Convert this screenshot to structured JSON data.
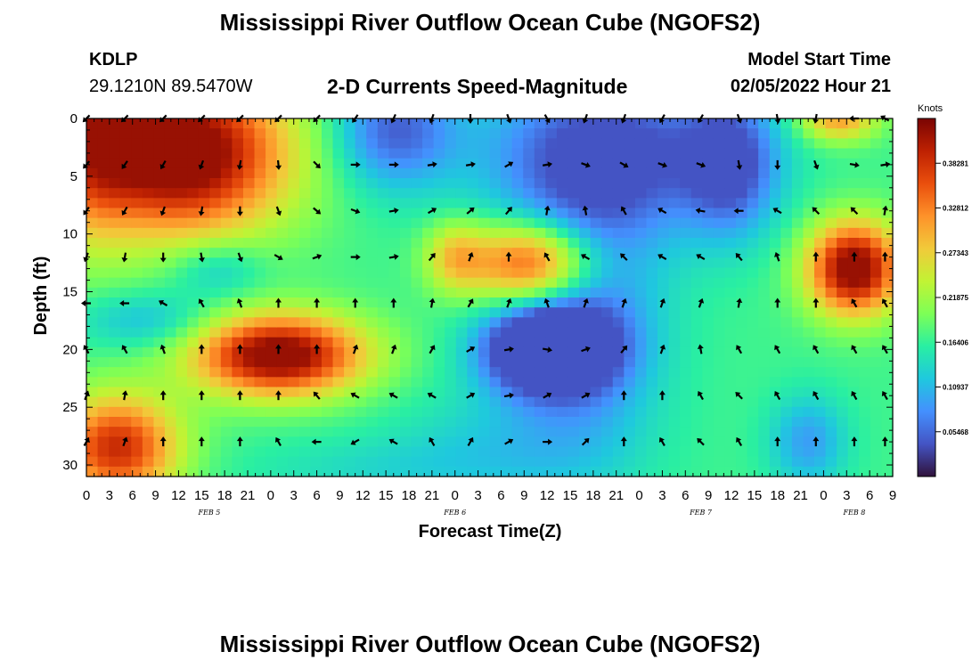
{
  "header": {
    "title": "Mississippi River Outflow Ocean Cube (NGOFS2)",
    "station": "KDLP",
    "coords": "29.1210N  89.5470W",
    "subtitle": "2-D Currents Speed-Magnitude",
    "model_start_label": "Model Start Time",
    "model_start_value": "02/05/2022 Hour 21"
  },
  "footer": {
    "title": "Mississippi River Outflow Ocean Cube (NGOFS2)"
  },
  "colors": {
    "colormap": [
      "#30123b",
      "#4454c4",
      "#4490fe",
      "#1fc8de",
      "#29efa2",
      "#7dff56",
      "#c1f334",
      "#f1ca3a",
      "#fe922a",
      "#ea4f0d",
      "#be2102",
      "#7a0403"
    ]
  },
  "chart_data": {
    "type": "heatmap",
    "xlabel": "Forecast Time(Z)",
    "ylabel": "Depth (ft)",
    "x_range": [
      0,
      105
    ],
    "y_range": [
      0,
      31
    ],
    "x_ticks": [
      {
        "hour": 0,
        "label": "0"
      },
      {
        "hour": 3,
        "label": "3"
      },
      {
        "hour": 6,
        "label": "6"
      },
      {
        "hour": 9,
        "label": "9"
      },
      {
        "hour": 12,
        "label": "12"
      },
      {
        "hour": 15,
        "label": "15"
      },
      {
        "hour": 18,
        "label": "18"
      },
      {
        "hour": 21,
        "label": "21"
      },
      {
        "hour": 24,
        "label": "0"
      },
      {
        "hour": 27,
        "label": "3"
      },
      {
        "hour": 30,
        "label": "6"
      },
      {
        "hour": 33,
        "label": "9"
      },
      {
        "hour": 36,
        "label": "12"
      },
      {
        "hour": 39,
        "label": "15"
      },
      {
        "hour": 42,
        "label": "18"
      },
      {
        "hour": 45,
        "label": "21"
      },
      {
        "hour": 48,
        "label": "0"
      },
      {
        "hour": 51,
        "label": "3"
      },
      {
        "hour": 54,
        "label": "6"
      },
      {
        "hour": 57,
        "label": "9"
      },
      {
        "hour": 60,
        "label": "12"
      },
      {
        "hour": 63,
        "label": "15"
      },
      {
        "hour": 66,
        "label": "18"
      },
      {
        "hour": 69,
        "label": "21"
      },
      {
        "hour": 72,
        "label": "0"
      },
      {
        "hour": 75,
        "label": "3"
      },
      {
        "hour": 78,
        "label": "6"
      },
      {
        "hour": 81,
        "label": "9"
      },
      {
        "hour": 84,
        "label": "12"
      },
      {
        "hour": 87,
        "label": "15"
      },
      {
        "hour": 90,
        "label": "18"
      },
      {
        "hour": 93,
        "label": "21"
      },
      {
        "hour": 96,
        "label": "0"
      },
      {
        "hour": 99,
        "label": "3"
      },
      {
        "hour": 102,
        "label": "6"
      },
      {
        "hour": 105,
        "label": "9"
      }
    ],
    "y_ticks": [
      0,
      5,
      10,
      15,
      20,
      25,
      30
    ],
    "day_labels": [
      {
        "hour": 16,
        "label": "FEB 5"
      },
      {
        "hour": 48,
        "label": "FEB 6"
      },
      {
        "hour": 80,
        "label": "FEB 7"
      },
      {
        "hour": 100,
        "label": "FEB 8"
      }
    ],
    "colorbar": {
      "label": "Knots",
      "min": 0.0,
      "max": 0.4375,
      "ticks": [
        {
          "value": 0.38281,
          "label": "0.38281"
        },
        {
          "value": 0.32812,
          "label": "0.32812"
        },
        {
          "value": 0.27343,
          "label": "0.27343"
        },
        {
          "value": 0.21875,
          "label": "0.21875"
        },
        {
          "value": 0.16406,
          "label": "0.16406"
        },
        {
          "value": 0.10937,
          "label": "0.10937"
        },
        {
          "value": 0.05468,
          "label": "0.05468"
        }
      ]
    },
    "speed_blobs": [
      {
        "t": 12,
        "d": 3,
        "rt": 14,
        "rd": 7,
        "v": 0.3
      },
      {
        "t": 0,
        "d": 0,
        "rt": 6,
        "rd": 10,
        "v": 0.12
      },
      {
        "t": 40,
        "d": 1,
        "rt": 8,
        "rd": 5,
        "v": -0.12
      },
      {
        "t": 68,
        "d": 3,
        "rt": 16,
        "rd": 7,
        "v": -0.14
      },
      {
        "t": 84,
        "d": 4,
        "rt": 6,
        "rd": 6,
        "v": -0.12
      },
      {
        "t": 65,
        "d": 17,
        "rt": 10,
        "rd": 12,
        "v": -0.1
      },
      {
        "t": 17,
        "d": 13,
        "rt": 6,
        "rd": 2.5,
        "v": -0.06
      },
      {
        "t": 58,
        "d": 12.5,
        "rt": 8,
        "rd": 3.5,
        "v": 0.22
      },
      {
        "t": 48,
        "d": 12,
        "rt": 4,
        "rd": 3,
        "v": 0.1
      },
      {
        "t": 100,
        "d": 13,
        "rt": 6,
        "rd": 4,
        "v": 0.28
      },
      {
        "t": 98,
        "d": 0,
        "rt": 5,
        "rd": 2,
        "v": 0.14
      },
      {
        "t": 25,
        "d": 20.5,
        "rt": 11,
        "rd": 3.5,
        "v": 0.28
      },
      {
        "t": 8,
        "d": 17.5,
        "rt": 9,
        "rd": 2.5,
        "v": -0.06
      },
      {
        "t": 4,
        "d": 28.5,
        "rt": 8,
        "rd": 4.5,
        "v": 0.22
      },
      {
        "t": 60,
        "d": 20,
        "rt": 8,
        "rd": 3.5,
        "v": -0.24
      },
      {
        "t": 54,
        "d": 28,
        "rt": 14,
        "rd": 5,
        "v": -0.04
      },
      {
        "t": 94,
        "d": 28,
        "rt": 5,
        "rd": 4,
        "v": -0.08
      },
      {
        "t": 38,
        "d": 30.5,
        "rt": 18,
        "rd": 3,
        "v": -0.03
      }
    ],
    "vectors": {
      "hours": [
        0,
        5,
        10,
        15,
        20,
        25,
        30,
        35,
        40,
        45,
        50,
        55,
        60,
        65,
        70,
        75,
        80,
        85,
        90,
        95,
        100,
        104
      ],
      "depths": [
        0,
        4,
        8,
        12,
        16,
        20,
        24,
        28
      ],
      "default_angle": 90,
      "rows": [
        [
          225,
          225,
          225,
          225,
          225,
          225,
          225,
          215,
          205,
          200,
          180,
          160,
          150,
          200,
          200,
          210,
          210,
          160,
          170,
          190,
          270,
          300
        ],
        [
          220,
          215,
          210,
          200,
          190,
          175,
          135,
          90,
          90,
          80,
          80,
          60,
          80,
          110,
          120,
          110,
          110,
          170,
          180,
          160,
          100,
          80
        ],
        [
          215,
          210,
          200,
          190,
          180,
          160,
          130,
          110,
          80,
          60,
          50,
          40,
          10,
          350,
          330,
          300,
          280,
          270,
          300,
          315,
          315,
          10
        ],
        [
          200,
          190,
          180,
          170,
          160,
          120,
          70,
          90,
          80,
          40,
          20,
          0,
          330,
          300,
          315,
          300,
          300,
          320,
          340,
          0,
          0,
          0
        ],
        [
          270,
          270,
          300,
          330,
          340,
          0,
          0,
          0,
          0,
          10,
          30,
          20,
          340,
          20,
          20,
          20,
          20,
          10,
          0,
          0,
          330,
          330
        ],
        [
          330,
          330,
          340,
          0,
          0,
          0,
          0,
          20,
          20,
          30,
          60,
          80,
          100,
          70,
          40,
          20,
          350,
          330,
          330,
          330,
          330,
          330
        ],
        [
          20,
          10,
          0,
          0,
          0,
          0,
          320,
          300,
          300,
          300,
          60,
          80,
          60,
          60,
          0,
          0,
          330,
          315,
          330,
          330,
          330,
          330
        ],
        [
          30,
          20,
          0,
          0,
          0,
          330,
          270,
          240,
          300,
          330,
          30,
          60,
          90,
          45,
          0,
          330,
          315,
          330,
          0,
          0,
          0,
          0
        ]
      ]
    }
  }
}
